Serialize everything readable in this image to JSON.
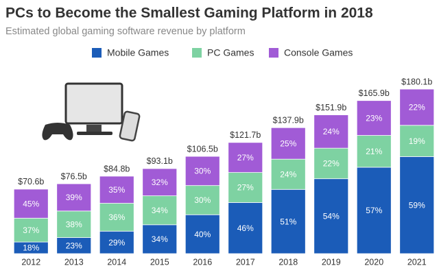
{
  "chart_data": {
    "type": "stacked_bar",
    "title": "PCs to Become the Smallest Gaming Platform in 2018",
    "subtitle": "Estimated global gaming software revenue by platform",
    "categories": [
      "2012",
      "2013",
      "2014",
      "2015",
      "2016",
      "2017",
      "2018",
      "2019",
      "2020",
      "2021"
    ],
    "series": [
      {
        "name": "Mobile Games",
        "color": "#1b5cb8",
        "values": [
          18,
          23,
          29,
          34,
          40,
          46,
          51,
          54,
          57,
          59
        ],
        "value_labels": [
          "18%",
          "23%",
          "29%",
          "34%",
          "40%",
          "46%",
          "51%",
          "54%",
          "57%",
          "59%"
        ]
      },
      {
        "name": "PC Games",
        "color": "#7ed2a2",
        "values": [
          37,
          38,
          36,
          34,
          30,
          27,
          24,
          22,
          21,
          19
        ],
        "value_labels": [
          "37%",
          "38%",
          "36%",
          "34%",
          "30%",
          "27%",
          "24%",
          "22%",
          "21%",
          "19%"
        ]
      },
      {
        "name": "Console Games",
        "color": "#a15bd6",
        "values": [
          45,
          39,
          35,
          32,
          30,
          27,
          25,
          24,
          23,
          22
        ],
        "value_labels": [
          "45%",
          "39%",
          "35%",
          "32%",
          "30%",
          "27%",
          "25%",
          "24%",
          "23%",
          "22%"
        ]
      }
    ],
    "totals": {
      "values": [
        70.6,
        76.5,
        84.8,
        93.1,
        106.5,
        121.7,
        137.9,
        151.9,
        165.9,
        180.1
      ],
      "value_labels": [
        "$70.6b",
        "$76.5b",
        "$84.8b",
        "$93.1b",
        "$106.5b",
        "$121.7b",
        "$137.9b",
        "$151.9b",
        "$165.9b",
        "$180.1b"
      ]
    }
  }
}
